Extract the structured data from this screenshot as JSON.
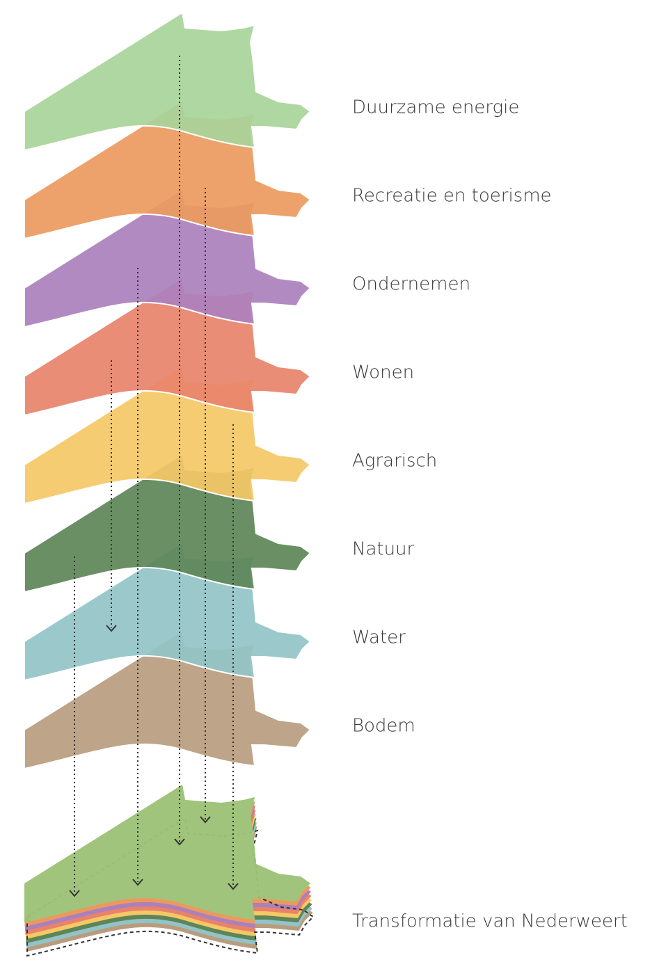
{
  "layers": [
    {
      "label": "Duurzame energie"
    },
    {
      "label": "Recreatie en toerisme"
    },
    {
      "label": "Ondernemen"
    },
    {
      "label": "Wonen"
    },
    {
      "label": "Agrarisch"
    },
    {
      "label": "Natuur"
    },
    {
      "label": "Water"
    },
    {
      "label": "Bodem"
    }
  ],
  "result": {
    "label": "Transformatie van Nederweert"
  }
}
